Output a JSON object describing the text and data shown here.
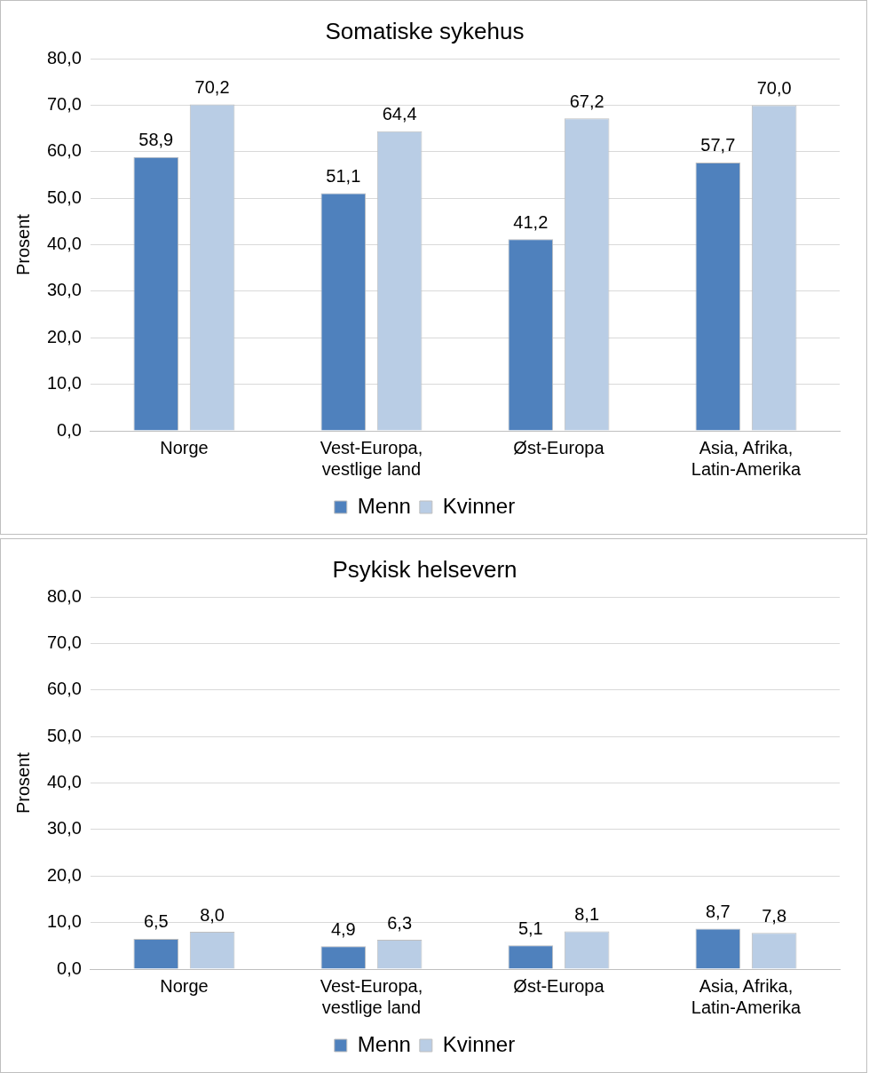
{
  "chart_data": [
    {
      "type": "bar",
      "title": "Somatiske sykehus",
      "ylabel": "Prosent",
      "categories": [
        "Norge",
        "Vest-Europa, vestlige land",
        "Øst-Europa",
        "Asia, Afrika, Latin-Amerika"
      ],
      "series": [
        {
          "name": "Menn",
          "color": "#4f81bd",
          "values": [
            58.9,
            51.1,
            41.2,
            57.7
          ],
          "value_labels": [
            "58,9",
            "51,1",
            "41,2",
            "57,7"
          ]
        },
        {
          "name": "Kvinner",
          "color": "#b9cde5",
          "values": [
            70.2,
            64.4,
            67.2,
            70.0
          ],
          "value_labels": [
            "70,2",
            "64,4",
            "67,2",
            "70,0"
          ]
        }
      ],
      "ylim": [
        0,
        80
      ],
      "yticks": [
        {
          "value": 0,
          "label": "0,0"
        },
        {
          "value": 10,
          "label": "10,0"
        },
        {
          "value": 20,
          "label": "20,0"
        },
        {
          "value": 30,
          "label": "30,0"
        },
        {
          "value": 40,
          "label": "40,0"
        },
        {
          "value": 50,
          "label": "50,0"
        },
        {
          "value": 60,
          "label": "60,0"
        },
        {
          "value": 70,
          "label": "70,0"
        },
        {
          "value": 80,
          "label": "80,0"
        }
      ],
      "grid": "y",
      "legend": "bottom"
    },
    {
      "type": "bar",
      "title": "Psykisk helsevern",
      "ylabel": "Prosent",
      "categories": [
        "Norge",
        "Vest-Europa, vestlige land",
        "Øst-Europa",
        "Asia, Afrika, Latin-Amerika"
      ],
      "series": [
        {
          "name": "Menn",
          "color": "#4f81bd",
          "values": [
            6.5,
            4.9,
            5.1,
            8.7
          ],
          "value_labels": [
            "6,5",
            "4,9",
            "5,1",
            "8,7"
          ]
        },
        {
          "name": "Kvinner",
          "color": "#b9cde5",
          "values": [
            8.0,
            6.3,
            8.1,
            7.8
          ],
          "value_labels": [
            "8,0",
            "6,3",
            "8,1",
            "7,8"
          ]
        }
      ],
      "ylim": [
        0,
        80
      ],
      "yticks": [
        {
          "value": 0,
          "label": "0,0"
        },
        {
          "value": 10,
          "label": "10,0"
        },
        {
          "value": 20,
          "label": "20,0"
        },
        {
          "value": 30,
          "label": "30,0"
        },
        {
          "value": 40,
          "label": "40,0"
        },
        {
          "value": 50,
          "label": "50,0"
        },
        {
          "value": 60,
          "label": "60,0"
        },
        {
          "value": 70,
          "label": "70,0"
        },
        {
          "value": 80,
          "label": "80,0"
        }
      ],
      "grid": "y",
      "legend": "bottom"
    }
  ]
}
